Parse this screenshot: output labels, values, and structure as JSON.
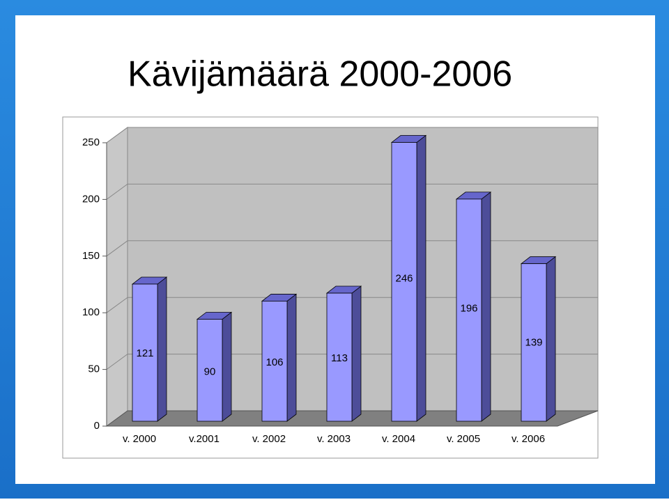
{
  "chart_data": {
    "type": "bar",
    "title": "Kävijämäärä 2000-2006",
    "categories": [
      "v. 2000",
      "v.2001",
      "v. 2002",
      "v. 2003",
      "v. 2004",
      "v. 2005",
      "v. 2006"
    ],
    "values": [
      121,
      90,
      106,
      113,
      246,
      196,
      139
    ],
    "color": "#9999ff",
    "ylim": [
      0,
      250
    ],
    "yticks": [
      0,
      50,
      100,
      150,
      200,
      250
    ],
    "grid": true
  }
}
